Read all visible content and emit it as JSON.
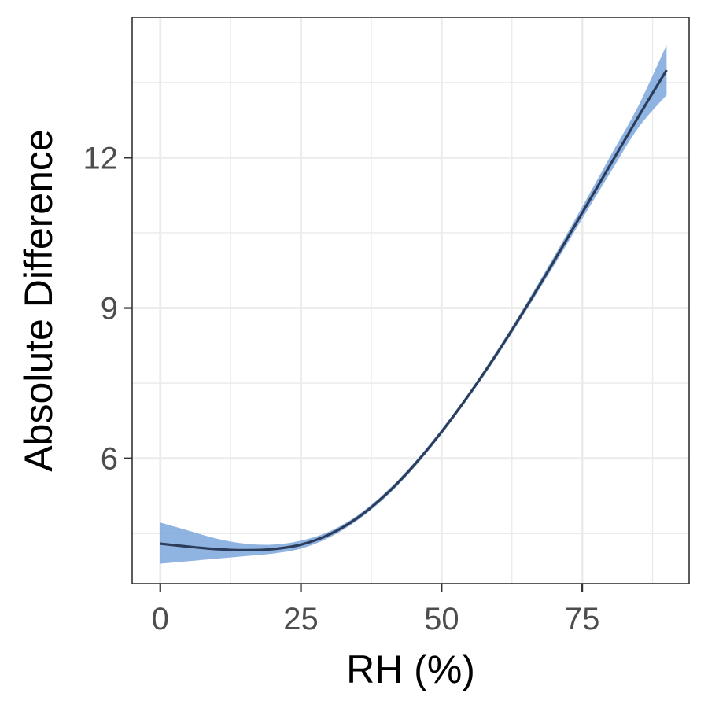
{
  "chart_data": {
    "type": "line",
    "xlabel": "RH (%)",
    "ylabel": "Absolute Difference",
    "xlim": [
      -5,
      94
    ],
    "ylim": [
      3.5,
      14.8
    ],
    "x_ticks": [
      0,
      25,
      50,
      75
    ],
    "y_ticks": [
      6,
      9,
      12
    ],
    "grid": true,
    "legend": "none",
    "colors": {
      "line": "#2b3d5b",
      "ribbon": "#7da7dd",
      "grid": "#ebebeb",
      "border": "#333333"
    },
    "series": [
      {
        "x": [
          0,
          5,
          10,
          15,
          20,
          25,
          30,
          35,
          40,
          45,
          50,
          55,
          60,
          65,
          70,
          75,
          80,
          85,
          90
        ],
        "y": [
          4.3,
          4.24,
          4.19,
          4.17,
          4.19,
          4.28,
          4.48,
          4.81,
          5.27,
          5.85,
          6.53,
          7.29,
          8.12,
          9.01,
          9.94,
          10.9,
          11.86,
          12.82,
          13.75
        ],
        "lower": [
          3.9,
          3.95,
          4.0,
          4.05,
          4.1,
          4.2,
          4.42,
          4.76,
          5.22,
          5.8,
          6.48,
          7.24,
          8.06,
          8.94,
          9.85,
          10.78,
          11.7,
          12.6,
          13.25
        ],
        "upper": [
          4.72,
          4.56,
          4.4,
          4.3,
          4.28,
          4.36,
          4.54,
          4.86,
          5.32,
          5.9,
          6.58,
          7.34,
          8.18,
          9.08,
          10.03,
          11.02,
          12.03,
          13.04,
          14.25
        ]
      }
    ]
  }
}
